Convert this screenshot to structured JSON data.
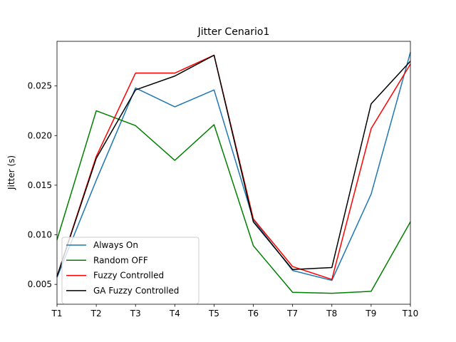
{
  "chart_data": {
    "type": "line",
    "title": "Jitter Cenario1",
    "xlabel": "",
    "ylabel": "Jitter (s)",
    "categories": [
      "T1",
      "T2",
      "T3",
      "T4",
      "T5",
      "T6",
      "T7",
      "T8",
      "T9",
      "T10"
    ],
    "ylim": [
      0.003,
      0.0295
    ],
    "yticks": [
      0.005,
      0.01,
      0.015,
      0.02,
      0.025
    ],
    "ytick_labels": [
      "0.005",
      "0.010",
      "0.015",
      "0.020",
      "0.025"
    ],
    "grid": false,
    "legend_position": "lower-left",
    "series": [
      {
        "name": "Always On",
        "color": "#1f77b4",
        "values": [
          0.0057,
          0.0155,
          0.0248,
          0.0229,
          0.0246,
          0.0115,
          0.0064,
          0.0054,
          0.0141,
          0.0284
        ]
      },
      {
        "name": "Random OFF",
        "color": "#008000",
        "values": [
          0.0095,
          0.0225,
          0.021,
          0.0175,
          0.0211,
          0.0089,
          0.0042,
          0.0041,
          0.0043,
          0.0113
        ]
      },
      {
        "name": "Fuzzy Controlled",
        "color": "#ff0000",
        "values": [
          0.0058,
          0.0179,
          0.0263,
          0.0263,
          0.0281,
          0.0116,
          0.0068,
          0.0055,
          0.0207,
          0.0272
        ]
      },
      {
        "name": "GA Fuzzy Controlled",
        "color": "#000000",
        "values": [
          0.0058,
          0.0177,
          0.0246,
          0.026,
          0.0281,
          0.0113,
          0.0065,
          0.0067,
          0.0232,
          0.0275
        ]
      }
    ]
  }
}
